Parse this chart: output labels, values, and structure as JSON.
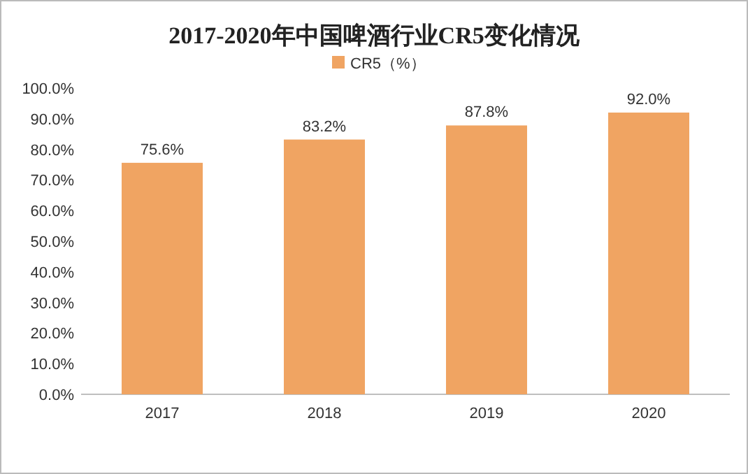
{
  "chart_data": {
    "type": "bar",
    "title": "2017-2020年中国啤酒行业CR5变化情况",
    "categories": [
      "2017",
      "2018",
      "2019",
      "2020"
    ],
    "series": [
      {
        "name": "CR5（%）",
        "color": "#f0a462",
        "values": [
          75.6,
          83.2,
          87.8,
          92.0
        ],
        "value_labels": [
          "75.6%",
          "83.2%",
          "87.8%",
          "92.0%"
        ]
      }
    ],
    "ylim": [
      0,
      100
    ],
    "yticks": [
      {
        "value": 0,
        "label": "0.0%"
      },
      {
        "value": 10,
        "label": "10.0%"
      },
      {
        "value": 20,
        "label": "20.0%"
      },
      {
        "value": 30,
        "label": "30.0%"
      },
      {
        "value": 40,
        "label": "40.0%"
      },
      {
        "value": 50,
        "label": "50.0%"
      },
      {
        "value": 60,
        "label": "60.0%"
      },
      {
        "value": 70,
        "label": "70.0%"
      },
      {
        "value": 80,
        "label": "80.0%"
      },
      {
        "value": 90,
        "label": "90.0%"
      },
      {
        "value": 100,
        "label": "100.0%"
      }
    ],
    "legend": "top",
    "grid": false
  }
}
